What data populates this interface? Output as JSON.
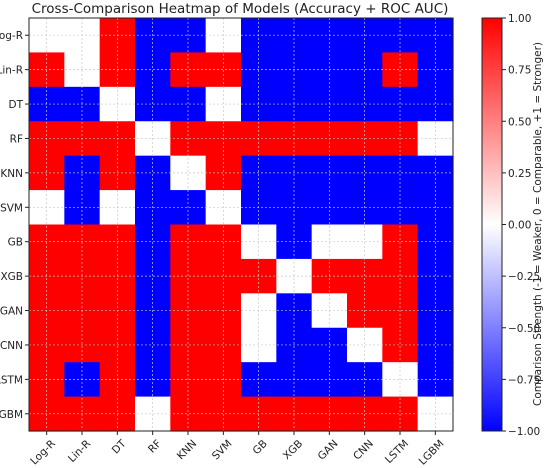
{
  "chart_data": {
    "type": "heatmap",
    "title": "Cross-Comparison Heatmap of Models (Accuracy + ROC AUC)",
    "rows": [
      "Log-R",
      "Lin-R",
      "DT",
      "RF",
      "KNN",
      "SVM",
      "GB",
      "XGB",
      "GAN",
      "CNN",
      "LSTM",
      "LGBM"
    ],
    "columns": [
      "Log-R",
      "Lin-R",
      "DT",
      "RF",
      "KNN",
      "SVM",
      "GB",
      "XGB",
      "GAN",
      "CNN",
      "LSTM",
      "LGBM"
    ],
    "values": [
      [
        0,
        0,
        1,
        -1,
        -1,
        0,
        -1,
        -1,
        -1,
        -1,
        -1,
        -1
      ],
      [
        1,
        0,
        1,
        -1,
        1,
        1,
        -1,
        -1,
        -1,
        -1,
        1,
        -1
      ],
      [
        -1,
        -1,
        0,
        -1,
        -1,
        0,
        -1,
        -1,
        -1,
        -1,
        -1,
        -1
      ],
      [
        1,
        1,
        1,
        0,
        1,
        1,
        1,
        1,
        1,
        1,
        1,
        0
      ],
      [
        1,
        -1,
        1,
        -1,
        0,
        1,
        -1,
        -1,
        -1,
        -1,
        -1,
        -1
      ],
      [
        0,
        -1,
        0,
        -1,
        -1,
        0,
        -1,
        -1,
        -1,
        -1,
        -1,
        -1
      ],
      [
        1,
        1,
        1,
        -1,
        1,
        1,
        0,
        -1,
        0,
        0,
        1,
        -1
      ],
      [
        1,
        1,
        1,
        -1,
        1,
        1,
        1,
        0,
        1,
        1,
        1,
        -1
      ],
      [
        1,
        1,
        1,
        -1,
        1,
        1,
        0,
        -1,
        0,
        1,
        1,
        -1
      ],
      [
        1,
        1,
        1,
        -1,
        1,
        1,
        0,
        -1,
        -1,
        0,
        1,
        -1
      ],
      [
        1,
        -1,
        1,
        -1,
        1,
        1,
        -1,
        -1,
        -1,
        -1,
        0,
        -1
      ],
      [
        1,
        1,
        1,
        0,
        1,
        1,
        1,
        1,
        1,
        1,
        1,
        0
      ]
    ],
    "colorbar": {
      "label": "Comparison Strength (-1 = Weaker, 0 = Comparable, +1 = Stronger)",
      "ticks": [
        "1.00",
        "0.75",
        "0.50",
        "0.25",
        "0.00",
        "−0.25",
        "−0.50",
        "−0.75",
        "−1.00"
      ],
      "range": [
        -1,
        1
      ],
      "colors": {
        "low": "#0000ff",
        "mid": "#ffffff",
        "high": "#ff0000"
      }
    },
    "grid": true
  }
}
